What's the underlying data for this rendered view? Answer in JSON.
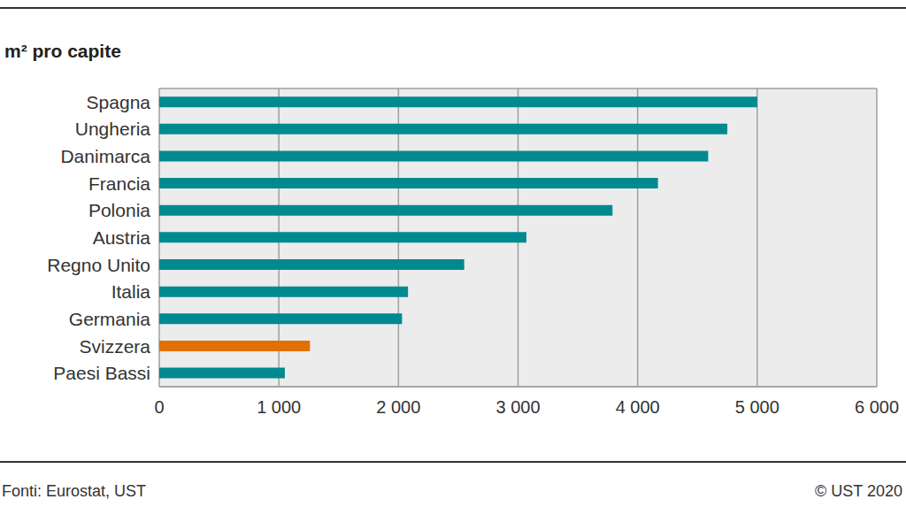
{
  "chart_data": {
    "type": "bar",
    "orientation": "horizontal",
    "title": "m² pro capite",
    "categories": [
      "Spagna",
      "Ungheria",
      "Danimarca",
      "Francia",
      "Polonia",
      "Austria",
      "Regno Unito",
      "Italia",
      "Germania",
      "Svizzera",
      "Paesi Bassi"
    ],
    "values": [
      5000,
      4750,
      4590,
      4170,
      3790,
      3070,
      2550,
      2080,
      2030,
      1260,
      1050
    ],
    "colors": [
      "#008a90",
      "#008a90",
      "#008a90",
      "#008a90",
      "#008a90",
      "#008a90",
      "#008a90",
      "#008a90",
      "#008a90",
      "#e07000",
      "#008a90"
    ],
    "xlim": [
      0,
      6000
    ],
    "xticks": [
      0,
      {
        "value": 1000,
        "label": "1 000"
      },
      {
        "value": 2000,
        "label": "2 000"
      },
      {
        "value": 3000,
        "label": "3 000"
      },
      {
        "value": 4000,
        "label": "4 000"
      },
      {
        "value": 5000,
        "label": "5 000"
      },
      {
        "value": 6000,
        "label": "6 000"
      }
    ],
    "grid": true,
    "source": "Fonti: Eurostat, UST",
    "copyright": "© UST 2020"
  }
}
